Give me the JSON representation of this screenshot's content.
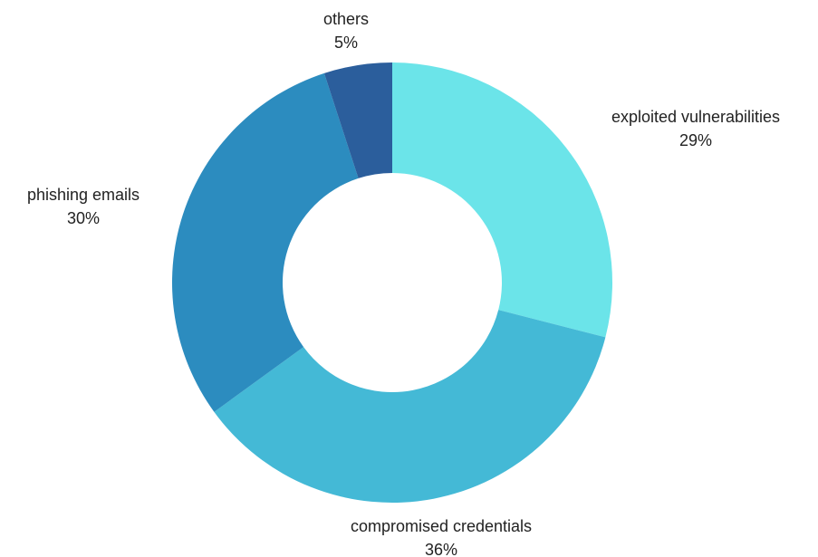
{
  "chart_data": {
    "type": "pie",
    "donut": true,
    "title": "",
    "slices": [
      {
        "label": "exploited vulnerabilities",
        "value": 29,
        "value_label": "29%",
        "color": "#6be4e9"
      },
      {
        "label": "compromised credentials",
        "value": 36,
        "value_label": "36%",
        "color": "#44b9d6"
      },
      {
        "label": "phishing emails",
        "value": 30,
        "value_label": "30%",
        "color": "#2c8cbf"
      },
      {
        "label": "others",
        "value": 5,
        "value_label": "5%",
        "color": "#2b5e9c"
      }
    ]
  }
}
